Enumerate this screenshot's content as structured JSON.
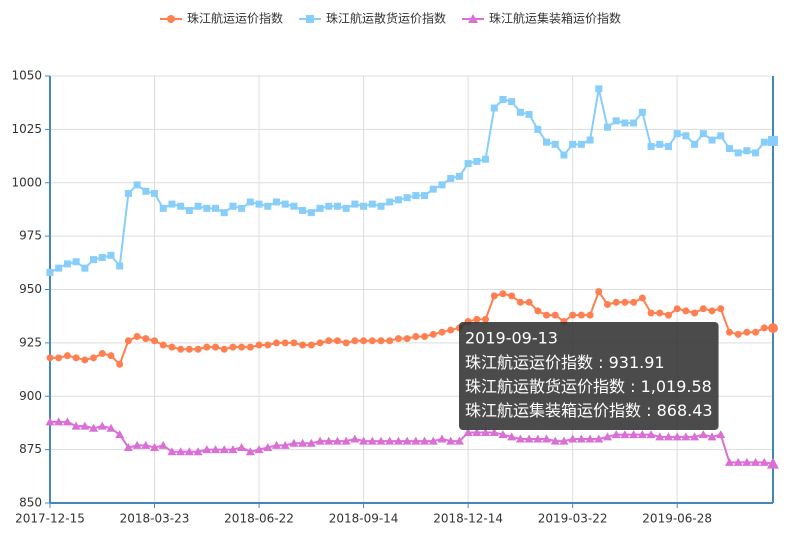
{
  "chart_data": {
    "type": "line",
    "categories": [
      "2017-12-15",
      null,
      null,
      null,
      null,
      null,
      null,
      null,
      null,
      null,
      null,
      null,
      "2018-03-23",
      null,
      null,
      null,
      null,
      null,
      null,
      null,
      null,
      null,
      null,
      null,
      "2018-06-22",
      null,
      null,
      null,
      null,
      null,
      null,
      null,
      null,
      null,
      null,
      null,
      "2018-09-14",
      null,
      null,
      null,
      null,
      null,
      null,
      null,
      null,
      null,
      null,
      null,
      "2018-12-14",
      null,
      null,
      null,
      null,
      null,
      null,
      null,
      null,
      null,
      null,
      null,
      "2019-03-22",
      null,
      null,
      null,
      null,
      null,
      null,
      null,
      null,
      null,
      null,
      null,
      "2019-06-28",
      null,
      null,
      null,
      null,
      null,
      null,
      null,
      null,
      null,
      null,
      null
    ],
    "series": [
      {
        "name": "珠江航运运价指数",
        "color": "#ff7f50",
        "marker": "circle",
        "values": [
          918,
          918,
          919,
          918,
          917,
          918,
          920,
          919,
          915,
          926,
          928,
          927,
          926,
          924,
          923,
          922,
          922,
          922,
          923,
          923,
          922,
          923,
          923,
          923,
          924,
          924,
          925,
          925,
          925,
          924,
          924,
          925,
          926,
          926,
          925,
          926,
          926,
          926,
          926,
          926,
          927,
          927,
          928,
          928,
          929,
          930,
          931,
          932,
          935,
          936,
          936,
          947,
          948,
          947,
          944,
          944,
          940,
          938,
          938,
          935,
          938,
          938,
          938,
          949,
          943,
          944,
          944,
          944,
          946,
          939,
          939,
          938,
          941,
          940,
          939,
          941,
          940,
          941,
          930,
          929,
          930,
          930,
          932,
          931.91
        ]
      },
      {
        "name": "珠江航运散货运价指数",
        "color": "#87cefa",
        "marker": "rect",
        "values": [
          958,
          960,
          962,
          963,
          960,
          964,
          965,
          966,
          961,
          995,
          999,
          996,
          995,
          988,
          990,
          989,
          987,
          989,
          988,
          988,
          986,
          989,
          988,
          991,
          990,
          989,
          991,
          990,
          989,
          987,
          986,
          988,
          989,
          989,
          988,
          990,
          989,
          990,
          989,
          991,
          992,
          993,
          994,
          994,
          997,
          999,
          1002,
          1003,
          1009,
          1010,
          1011,
          1035,
          1039,
          1038,
          1033,
          1032,
          1025,
          1019,
          1018,
          1013,
          1018,
          1018,
          1020,
          1044,
          1026,
          1029,
          1028,
          1028,
          1033,
          1017,
          1018,
          1017,
          1023,
          1022,
          1018,
          1023,
          1020,
          1022,
          1016,
          1014,
          1015,
          1014,
          1019,
          1019.58
        ]
      },
      {
        "name": "珠江航运集装箱运价指数",
        "color": "#da70d6",
        "marker": "triangle",
        "values": [
          888,
          888,
          888,
          886,
          886,
          885,
          886,
          885,
          882,
          876,
          877,
          877,
          876,
          877,
          874,
          874,
          874,
          874,
          875,
          875,
          875,
          875,
          876,
          874,
          875,
          876,
          877,
          877,
          878,
          878,
          878,
          879,
          879,
          879,
          879,
          880,
          879,
          879,
          879,
          879,
          879,
          879,
          879,
          879,
          879,
          880,
          879,
          879,
          883,
          883,
          883,
          883,
          882,
          881,
          880,
          880,
          880,
          880,
          879,
          879,
          880,
          880,
          880,
          880,
          881,
          882,
          882,
          882,
          882,
          882,
          881,
          881,
          881,
          881,
          881,
          882,
          881,
          882,
          869,
          869,
          869,
          869,
          869,
          868.43
        ]
      }
    ],
    "ylim": [
      850,
      1050
    ],
    "yticks": [
      850,
      875,
      900,
      925,
      950,
      975,
      1000,
      1025,
      1050
    ],
    "grid": true,
    "legend": "top",
    "tooltip": {
      "title": "2019-09-13",
      "values": [
        931.91,
        1019.58,
        868.43
      ],
      "value_labels": [
        "931.91",
        "1,019.58",
        "868.43"
      ]
    }
  }
}
